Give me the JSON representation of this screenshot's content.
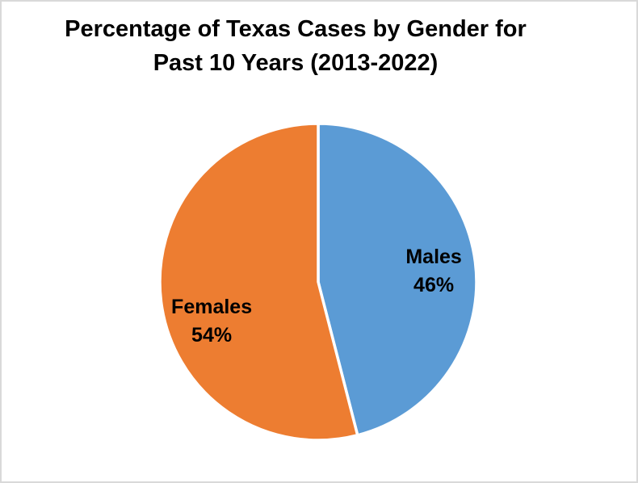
{
  "chart_data": {
    "type": "pie",
    "title": "Percentage of Texas Cases by Gender for Past 10 Years (2013-2022)",
    "title_lines": [
      "Percentage of Texas Cases by Gender for",
      "Past 10 Years (2013-2022)"
    ],
    "start_angle_deg": 0,
    "direction": "clockwise",
    "legend_position": "none",
    "separator_color": "#FFFFFF",
    "slices": [
      {
        "label": "Males",
        "value": 46,
        "pct_label": "46%",
        "color": "#5B9BD5"
      },
      {
        "label": "Females",
        "value": 54,
        "pct_label": "54%",
        "color": "#ED7D31"
      }
    ]
  },
  "canvas": {
    "background": "#FFFFFF",
    "border_color": "#D9D9D9"
  }
}
